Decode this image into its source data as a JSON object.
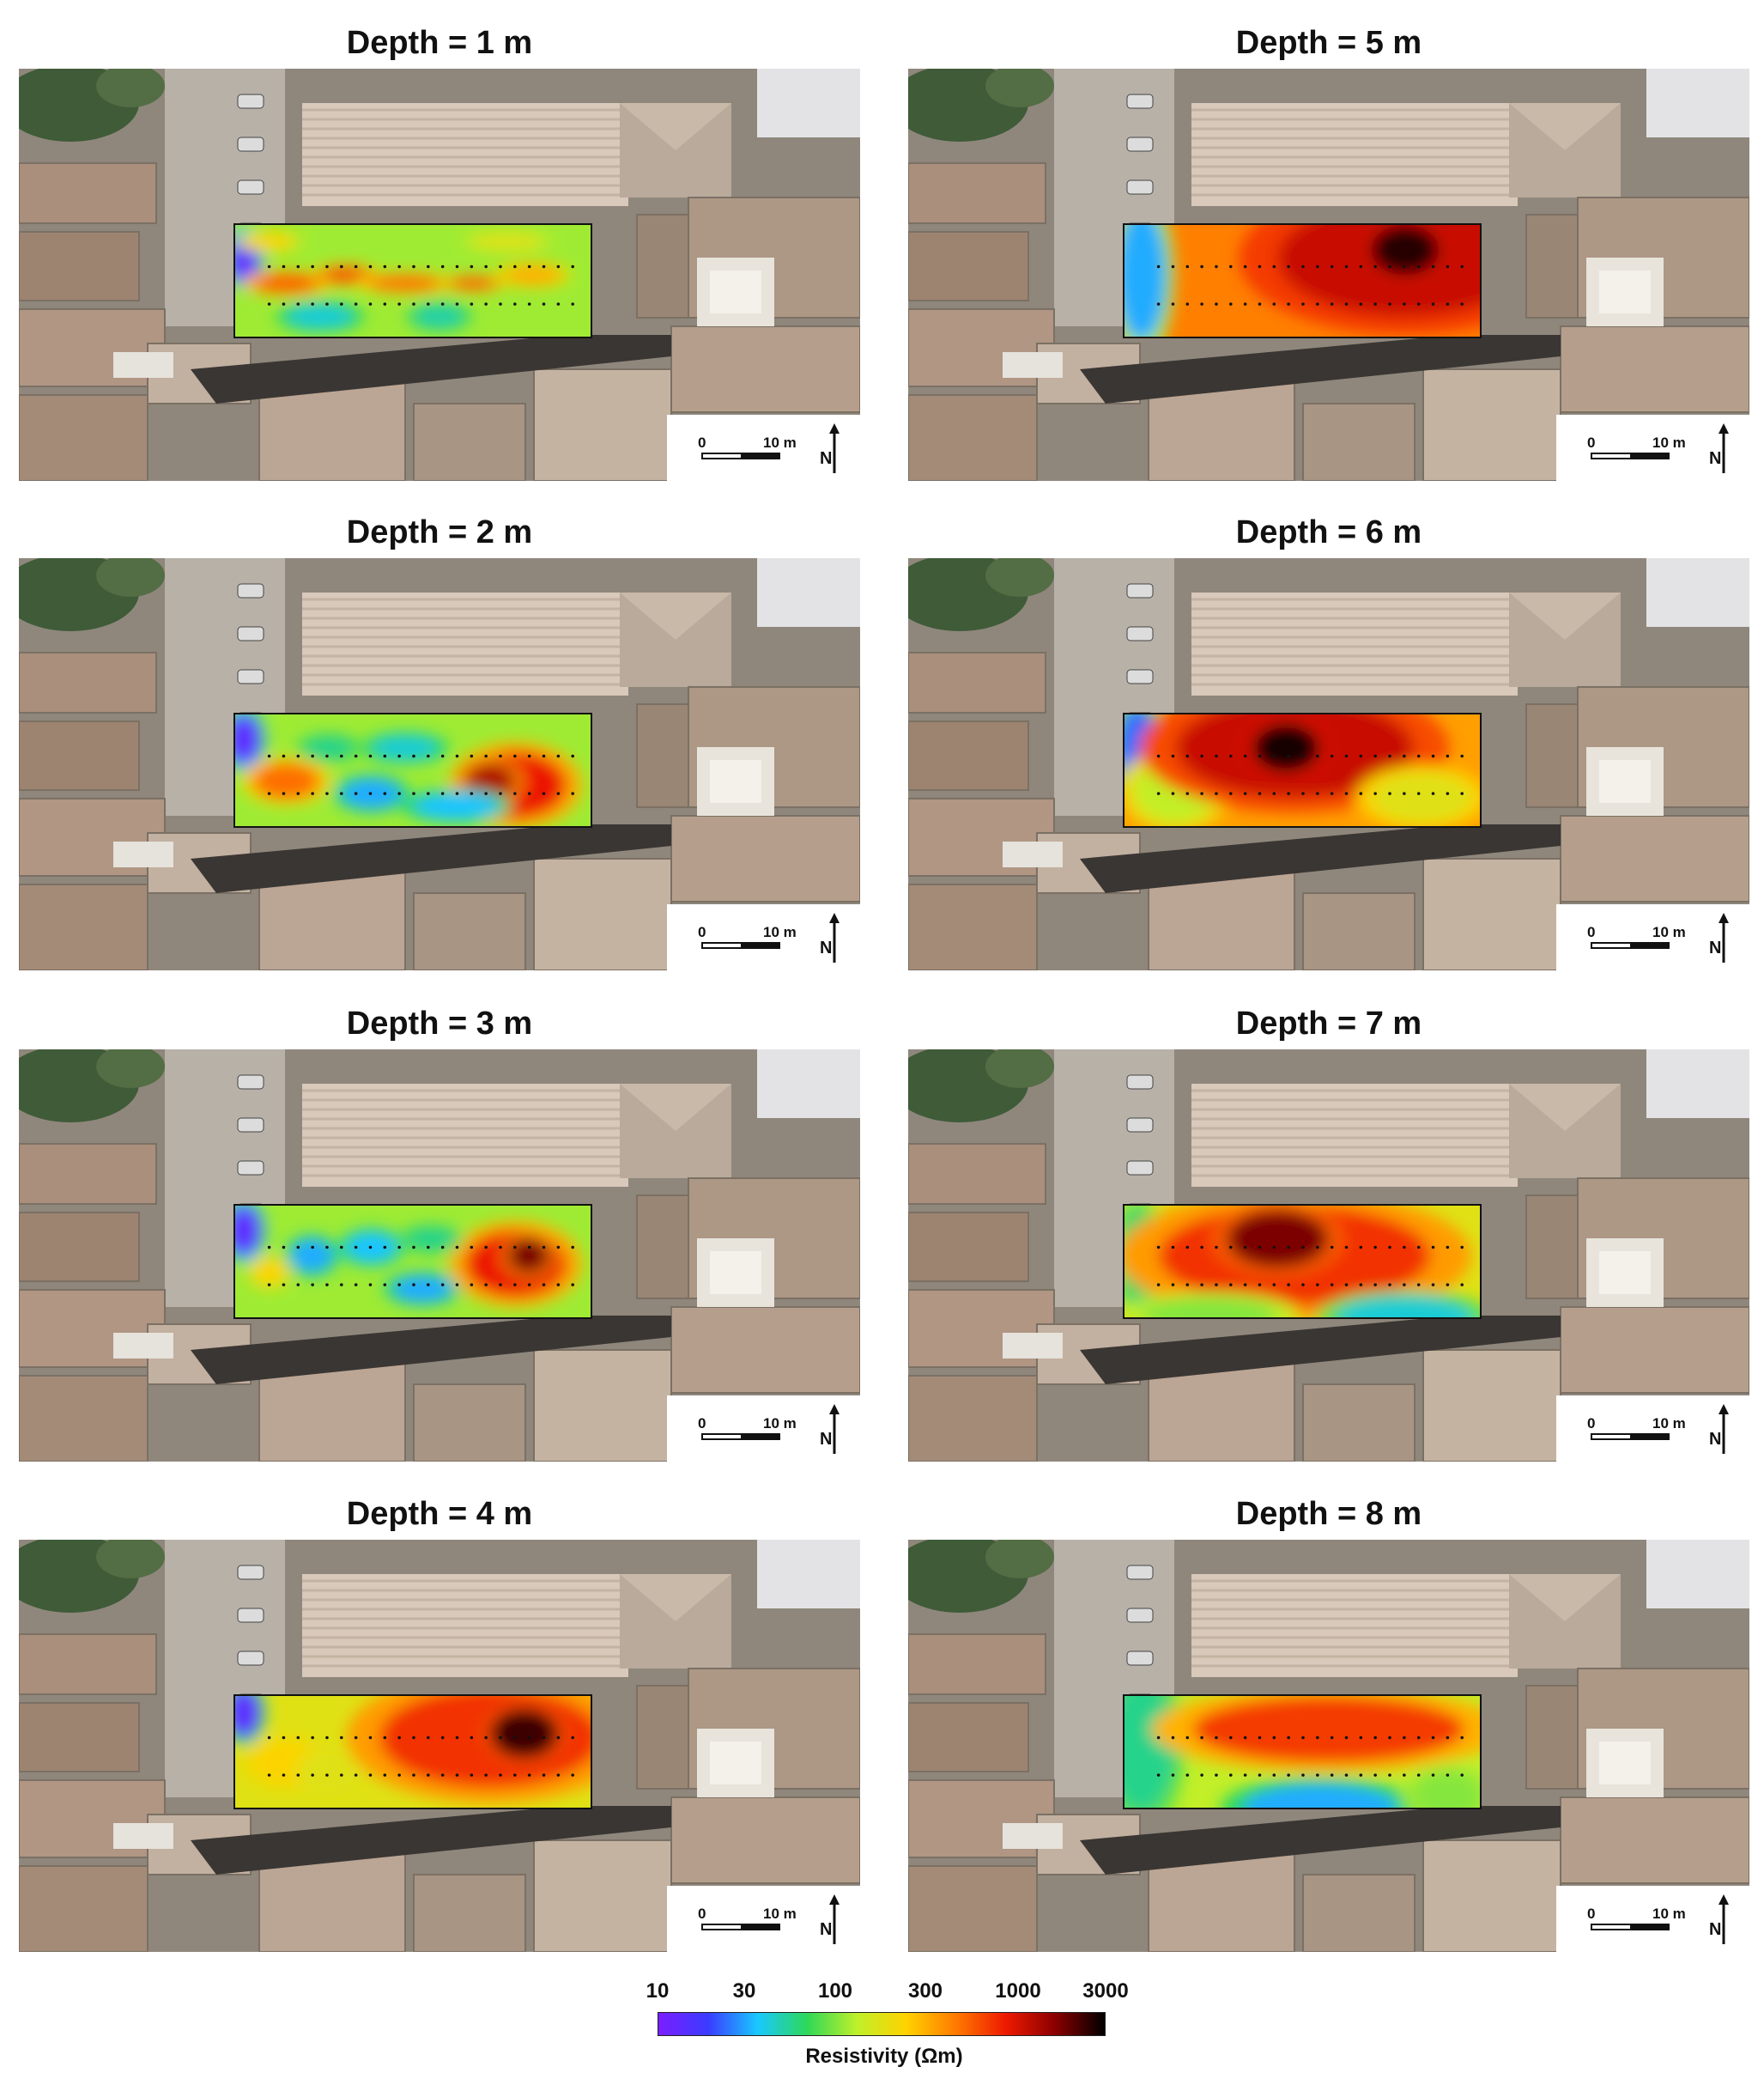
{
  "figure": {
    "panels": [
      {
        "title": "Depth = 1 m",
        "pattern": "patchy"
      },
      {
        "title": "Depth = 5 m",
        "pattern": "high-east"
      },
      {
        "title": "Depth = 2 m",
        "pattern": "mixed"
      },
      {
        "title": "Depth = 6 m",
        "pattern": "high-center"
      },
      {
        "title": "Depth = 3 m",
        "pattern": "mixed-east"
      },
      {
        "title": "Depth = 7 m",
        "pattern": "high-center-low-south"
      },
      {
        "title": "Depth = 4 m",
        "pattern": "high-east-yellow"
      },
      {
        "title": "Depth = 8 m",
        "pattern": "moderate"
      }
    ],
    "scale": {
      "zero_label": "0",
      "ten_label": "10 m",
      "north_label": "N",
      "north_icon": "north-arrow-icon"
    },
    "colorbar": {
      "ticks": [
        "10",
        "30",
        "100",
        "300",
        "1000",
        "3000"
      ],
      "label": "Resistivity (Ωm)",
      "stops": [
        "#7a1fff",
        "#3b3bff",
        "#19c8ff",
        "#2ed858",
        "#bff02a",
        "#ffd200",
        "#ff7a00",
        "#ee1a00",
        "#8a0000",
        "#000000"
      ]
    }
  }
}
